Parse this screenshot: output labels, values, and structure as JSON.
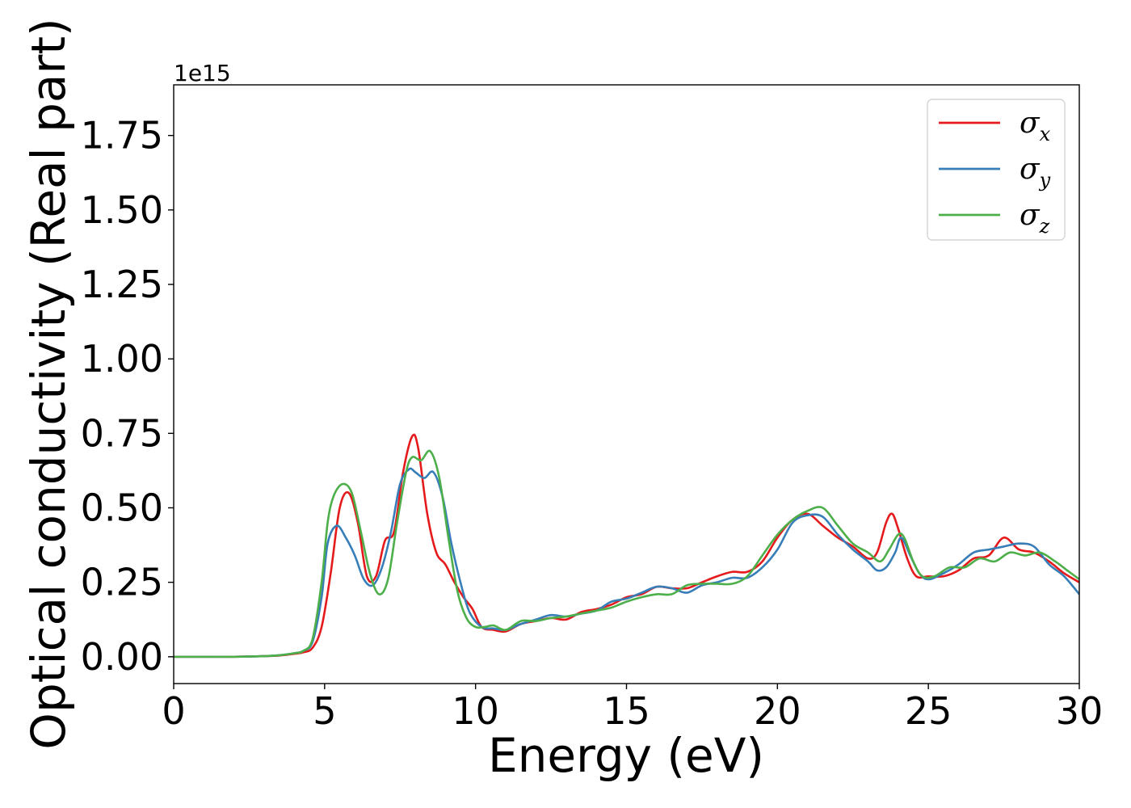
{
  "chart_data": {
    "type": "line",
    "xlabel": "Energy (eV)",
    "ylabel": "Optical conductivity (Real part)",
    "y_offset_label": "1e15",
    "xlim": [
      0,
      30
    ],
    "ylim": [
      -0.09,
      1.92
    ],
    "x_ticks": [
      0,
      5,
      10,
      15,
      20,
      25,
      30
    ],
    "x_tick_labels": [
      "0",
      "5",
      "10",
      "15",
      "20",
      "25",
      "30"
    ],
    "y_ticks": [
      0,
      0.25,
      0.5,
      0.75,
      1.0,
      1.25,
      1.5,
      1.75
    ],
    "y_tick_labels": [
      "0.00",
      "0.25",
      "0.50",
      "0.75",
      "1.00",
      "1.25",
      "1.50",
      "1.75"
    ],
    "grid": false,
    "legend_position": "top-right",
    "series": [
      {
        "name": "σx",
        "legend_symbol": "σ",
        "legend_sub": "x",
        "color": "#e41a1c",
        "x": [
          0,
          2,
          3,
          3.5,
          4,
          4.3,
          4.6,
          4.9,
          5.2,
          5.5,
          5.8,
          6.1,
          6.4,
          6.7,
          7.0,
          7.3,
          7.6,
          7.9,
          8.1,
          8.4,
          8.7,
          9.0,
          9.3,
          9.6,
          9.9,
          10.2,
          10.6,
          11.0,
          11.5,
          12.0,
          12.5,
          13.0,
          13.5,
          14.0,
          14.5,
          15.0,
          15.5,
          16.0,
          16.5,
          17.0,
          17.5,
          18.0,
          18.5,
          19.0,
          19.5,
          20.0,
          20.5,
          21.0,
          21.5,
          22.0,
          22.5,
          23.0,
          23.3,
          23.6,
          23.8,
          24.0,
          24.3,
          24.6,
          25.0,
          25.5,
          26.0,
          26.5,
          27.0,
          27.5,
          28.0,
          28.5,
          29.0,
          29.5,
          30.0
        ],
        "values": [
          0.0,
          0.0,
          0.002,
          0.004,
          0.01,
          0.015,
          0.03,
          0.1,
          0.28,
          0.5,
          0.55,
          0.45,
          0.27,
          0.27,
          0.39,
          0.42,
          0.62,
          0.74,
          0.7,
          0.48,
          0.35,
          0.31,
          0.25,
          0.2,
          0.16,
          0.1,
          0.09,
          0.085,
          0.11,
          0.12,
          0.13,
          0.125,
          0.15,
          0.16,
          0.175,
          0.2,
          0.21,
          0.235,
          0.23,
          0.23,
          0.25,
          0.27,
          0.285,
          0.285,
          0.32,
          0.4,
          0.46,
          0.48,
          0.44,
          0.4,
          0.37,
          0.33,
          0.35,
          0.45,
          0.48,
          0.43,
          0.33,
          0.27,
          0.27,
          0.27,
          0.29,
          0.33,
          0.34,
          0.4,
          0.36,
          0.35,
          0.32,
          0.28,
          0.25
        ]
      },
      {
        "name": "σy",
        "legend_symbol": "σ",
        "legend_sub": "y",
        "color": "#377eb8",
        "x": [
          0,
          2,
          3,
          3.5,
          4,
          4.3,
          4.6,
          4.9,
          5.1,
          5.4,
          5.7,
          6.0,
          6.3,
          6.6,
          6.9,
          7.2,
          7.5,
          7.8,
          8.0,
          8.3,
          8.6,
          8.9,
          9.2,
          9.5,
          9.8,
          10.2,
          10.6,
          11.0,
          11.5,
          12.0,
          12.5,
          13.0,
          13.5,
          14.0,
          14.5,
          15.0,
          15.5,
          16.0,
          16.5,
          17.0,
          17.5,
          18.0,
          18.5,
          19.0,
          19.5,
          20.0,
          20.5,
          21.0,
          21.5,
          22.0,
          22.5,
          23.0,
          23.3,
          23.6,
          23.9,
          24.1,
          24.4,
          24.7,
          25.0,
          25.5,
          26.0,
          26.5,
          27.0,
          27.5,
          28.0,
          28.5,
          29.0,
          29.5,
          30.0
        ],
        "values": [
          0.0,
          0.0,
          0.002,
          0.005,
          0.012,
          0.02,
          0.05,
          0.2,
          0.38,
          0.44,
          0.4,
          0.34,
          0.26,
          0.24,
          0.3,
          0.42,
          0.58,
          0.63,
          0.62,
          0.6,
          0.62,
          0.54,
          0.38,
          0.25,
          0.15,
          0.1,
          0.095,
          0.09,
          0.11,
          0.125,
          0.14,
          0.135,
          0.145,
          0.155,
          0.185,
          0.195,
          0.215,
          0.235,
          0.23,
          0.215,
          0.24,
          0.25,
          0.265,
          0.265,
          0.3,
          0.36,
          0.45,
          0.475,
          0.47,
          0.41,
          0.36,
          0.32,
          0.29,
          0.3,
          0.35,
          0.4,
          0.34,
          0.28,
          0.26,
          0.28,
          0.31,
          0.35,
          0.36,
          0.37,
          0.38,
          0.37,
          0.31,
          0.27,
          0.21
        ]
      },
      {
        "name": "σz",
        "legend_symbol": "σ",
        "legend_sub": "z",
        "color": "#4daf4a",
        "x": [
          0,
          2,
          3,
          3.5,
          4,
          4.3,
          4.6,
          4.9,
          5.1,
          5.3,
          5.6,
          5.9,
          6.2,
          6.5,
          6.8,
          7.1,
          7.4,
          7.7,
          7.9,
          8.2,
          8.5,
          8.8,
          9.1,
          9.4,
          9.7,
          10.0,
          10.3,
          10.6,
          11.0,
          11.5,
          12.0,
          12.5,
          13.0,
          13.5,
          14.0,
          14.5,
          15.0,
          15.5,
          16.0,
          16.5,
          17.0,
          17.5,
          18.0,
          18.5,
          19.0,
          19.5,
          20.0,
          20.5,
          21.0,
          21.5,
          22.0,
          22.5,
          23.0,
          23.4,
          23.7,
          24.0,
          24.2,
          24.5,
          24.8,
          25.2,
          25.7,
          26.2,
          26.7,
          27.2,
          27.7,
          28.2,
          28.7,
          29.2,
          29.6,
          30.0
        ],
        "values": [
          0.0,
          0.0,
          0.002,
          0.005,
          0.012,
          0.02,
          0.06,
          0.25,
          0.45,
          0.54,
          0.58,
          0.55,
          0.42,
          0.28,
          0.21,
          0.26,
          0.45,
          0.62,
          0.67,
          0.66,
          0.69,
          0.6,
          0.4,
          0.22,
          0.13,
          0.1,
          0.1,
          0.105,
          0.09,
          0.12,
          0.12,
          0.13,
          0.135,
          0.145,
          0.155,
          0.165,
          0.185,
          0.2,
          0.21,
          0.21,
          0.24,
          0.245,
          0.245,
          0.245,
          0.27,
          0.34,
          0.41,
          0.46,
          0.49,
          0.5,
          0.44,
          0.38,
          0.35,
          0.32,
          0.36,
          0.41,
          0.4,
          0.32,
          0.27,
          0.27,
          0.3,
          0.3,
          0.33,
          0.32,
          0.35,
          0.34,
          0.35,
          0.32,
          0.29,
          0.26
        ]
      }
    ]
  }
}
